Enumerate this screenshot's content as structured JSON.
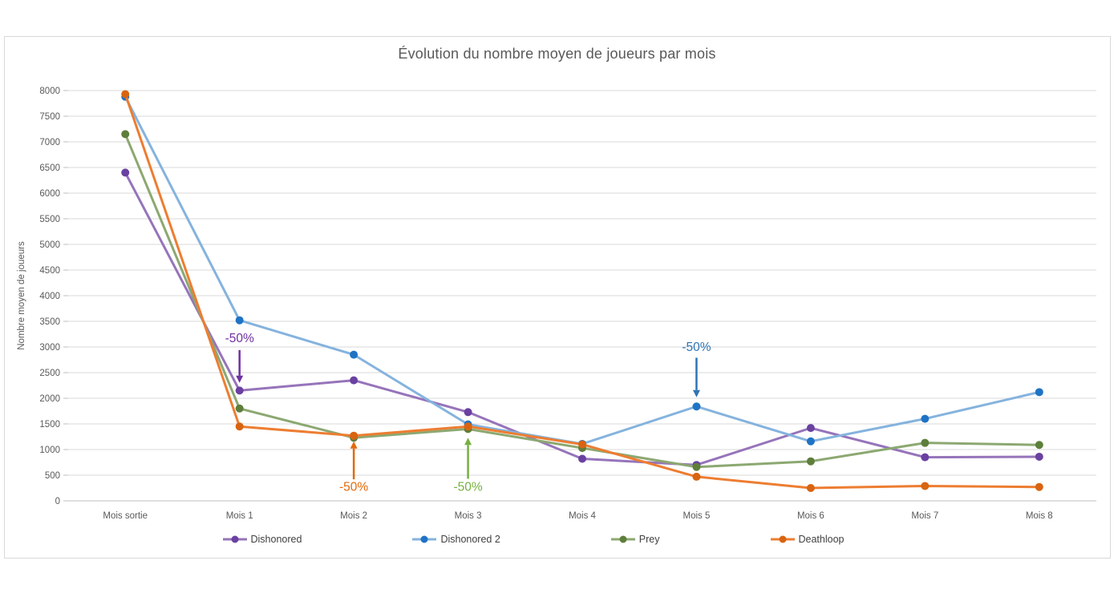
{
  "chart_data": {
    "type": "line",
    "title": "Évolution du nombre moyen de joueurs par mois",
    "ylabel": "Nombre moyen de joueurs",
    "xlabel": "",
    "categories": [
      "Mois sortie",
      "Mois 1",
      "Mois 2",
      "Mois 3",
      "Mois 4",
      "Mois 5",
      "Mois 6",
      "Mois 7",
      "Mois 8"
    ],
    "series": [
      {
        "name": "Dishonored",
        "line_color": "#9674BA",
        "marker_color": "#6A41A1",
        "values": [
          6400,
          2150,
          2350,
          1730,
          820,
          700,
          1420,
          850,
          860
        ]
      },
      {
        "name": "Dishonored 2",
        "line_color": "#85B3DE",
        "marker_color": "#1F73C5",
        "values": [
          7880,
          3520,
          2850,
          1490,
          1110,
          1840,
          1160,
          1600,
          2120
        ]
      },
      {
        "name": "Prey",
        "line_color": "#8CA871",
        "marker_color": "#5E7E3B",
        "values": [
          7150,
          1800,
          1230,
          1400,
          1030,
          660,
          770,
          1130,
          1090
        ]
      },
      {
        "name": "Deathloop",
        "line_color": "#ED7D31",
        "marker_color": "#D86411",
        "values": [
          7930,
          1450,
          1270,
          1450,
          1100,
          470,
          250,
          290,
          270
        ]
      }
    ],
    "annotations": [
      {
        "label": "-50%",
        "series": "Dishonored",
        "category": "Mois 1",
        "category_index": 1,
        "direction": "down",
        "color": "#7030A0",
        "text_value": 3170,
        "arrow_from_value": 2940,
        "arrow_to_value": 2300
      },
      {
        "label": "-50%",
        "series": "Deathloop",
        "category": "Mois 2",
        "category_index": 2,
        "direction": "up",
        "color": "#E3690B",
        "text_value": 270,
        "arrow_from_value": 420,
        "arrow_to_value": 1160
      },
      {
        "label": "-50%",
        "series": "Prey",
        "category": "Mois 3",
        "category_index": 3,
        "direction": "up",
        "color": "#76B041",
        "text_value": 270,
        "arrow_from_value": 430,
        "arrow_to_value": 1230
      },
      {
        "label": "-50%",
        "series": "Dishonored 2",
        "category": "Mois 5",
        "category_index": 5,
        "direction": "down",
        "color": "#2E74B5",
        "text_value": 3000,
        "arrow_from_value": 2790,
        "arrow_to_value": 2020
      }
    ],
    "y_axis": {
      "min": 0,
      "max": 8000,
      "step": 500,
      "tick_labels": [
        "0",
        "500",
        "1000",
        "1500",
        "2000",
        "2500",
        "3000",
        "3500",
        "4000",
        "4500",
        "5000",
        "5500",
        "6000",
        "6500",
        "7000",
        "7500",
        "8000"
      ]
    },
    "grid": true,
    "legend_position": "bottom",
    "colors": {
      "text": "#595959",
      "grid": "#d9d9d9",
      "axis": "#bfbfbf",
      "panel_border": "#d9d9d9",
      "legend_text": "#404040",
      "background": "#ffffff"
    }
  }
}
